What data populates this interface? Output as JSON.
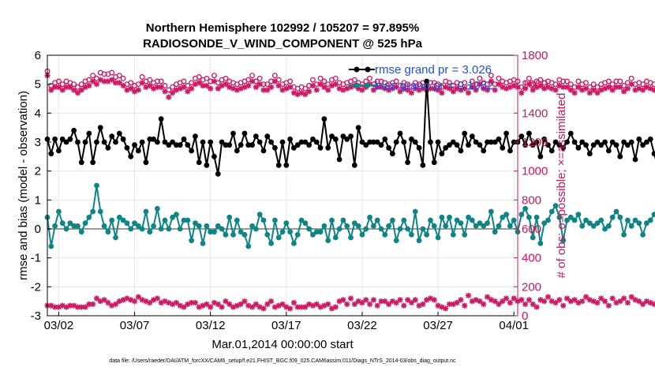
{
  "chart_data": {
    "type": "line",
    "title_line1": "Northern Hemisphere 102992 / 105207 = 97.895%",
    "title_line2": "RADIOSONDE_V_WIND_COMPONENT @ 525 hPa",
    "xlabel": "Mar.01,2014 00:00:00 start",
    "ylabel_left": "rmse and bias (model - observation)",
    "ylabel_right": "# of obs: o=possible; ×=assimilated",
    "footnote": "data file: /Users/raeder/DAI/ATM_forcXX/CAM6_setup/f.e21.FHIST_BGC.f09_025.CAM6assim.011/Diags_NTrS_2014-03/obs_diag_output.nc",
    "x_tick_labels": [
      "03/02",
      "03/07",
      "03/12",
      "03/17",
      "03/22",
      "03/27",
      "04/01"
    ],
    "x_tick_days": [
      1,
      6,
      11,
      16,
      21,
      26,
      31
    ],
    "xlim_days": [
      0.25,
      31.25
    ],
    "ylim_left": [
      -3,
      6
    ],
    "yticks_left": [
      "-3",
      "-2",
      "-1",
      "0",
      "1",
      "2",
      "3",
      "4",
      "5",
      "6"
    ],
    "ylim_right": [
      0,
      1800
    ],
    "yticks_right": [
      "0",
      "200",
      "400",
      "600",
      "800",
      "1000",
      "1200",
      "1400",
      "1600",
      "1800"
    ],
    "colors": {
      "rmse": "#000000",
      "bias": "#0e8585",
      "obs": "#cf1863",
      "zero_line": "#9a9a9a",
      "legend_text": "#1f4fe0",
      "right_axis": "#c8175d"
    },
    "legend": [
      {
        "series": "rmse",
        "label": "rmse grand pr = 3.026"
      },
      {
        "series": "bias",
        "label": "bias grand pr = 0.1082"
      }
    ],
    "x_step_days": 0.25,
    "series": [
      {
        "name": "rmse",
        "axis": "left",
        "values": [
          3.1,
          2.6,
          3.1,
          2.7,
          3.1,
          3.0,
          3.1,
          3.4,
          3.0,
          2.3,
          3.0,
          3.3,
          2.3,
          3.0,
          3.5,
          3.0,
          2.8,
          3.2,
          3.0,
          3.3,
          3.1,
          2.8,
          2.5,
          2.9,
          2.7,
          3.0,
          2.3,
          3.1,
          3.1,
          3.0,
          3.8,
          3.0,
          2.9,
          3.0,
          2.9,
          2.9,
          3.1,
          2.9,
          2.7,
          3.2,
          2.3,
          3.0,
          2.2,
          3.0,
          2.5,
          1.9,
          3.0,
          2.9,
          2.9,
          3.3,
          2.7,
          2.9,
          3.3,
          2.9,
          2.9,
          3.2,
          3.0,
          2.7,
          3.2,
          3.0,
          2.8,
          2.2,
          3.0,
          2.2,
          3.1,
          2.8,
          2.9,
          3.0,
          3.0,
          2.9,
          3.1,
          3.0,
          2.8,
          3.8,
          2.8,
          3.2,
          3.1,
          2.4,
          3.2,
          3.1,
          3.2,
          2.2,
          3.5,
          3.0,
          2.9,
          3.0,
          3.0,
          3.0,
          2.9,
          3.1,
          2.8,
          2.6,
          3.0,
          3.3,
          3.0,
          2.3,
          3.1,
          3.0,
          2.8,
          2.2,
          5.1,
          3.0,
          2.3,
          3.0,
          2.6,
          2.8,
          2.9,
          3.0,
          2.9,
          2.7,
          3.3,
          2.9,
          3.2,
          3.0,
          2.9,
          2.7,
          3.0,
          3.0,
          3.0,
          3.1,
          2.8,
          3.3,
          2.7,
          3.0,
          3.0,
          3.2,
          2.9,
          3.3,
          2.9,
          3.0,
          2.5,
          3.1,
          2.9,
          2.7,
          3.0,
          2.9,
          2.8,
          3.0,
          3.3,
          3.0,
          2.8,
          3.0,
          2.9,
          2.6,
          2.9,
          3.0,
          2.9,
          3.0,
          2.7,
          3.0,
          2.9,
          2.5,
          3.0,
          2.9,
          3.0,
          2.4,
          3.1,
          2.9,
          3.0,
          3.1,
          2.6,
          2.1,
          2.9,
          2.5
        ]
      },
      {
        "name": "bias",
        "axis": "left",
        "values": [
          0.4,
          -0.6,
          0.1,
          0.6,
          0.2,
          0.0,
          0.2,
          0.1,
          0.1,
          -0.1,
          0.2,
          0.4,
          0.6,
          1.5,
          0.6,
          0.1,
          -0.1,
          0.3,
          -0.3,
          0.4,
          0.3,
          0.2,
          0.0,
          0.2,
          0.1,
          0.0,
          0.6,
          -0.1,
          0.1,
          0.7,
          0.0,
          0.3,
          0.0,
          0.4,
          0.5,
          0.0,
          0.3,
          0.3,
          -0.4,
          0.2,
          0.1,
          -0.5,
          0.1,
          -0.1,
          -0.1,
          0.1,
          0.0,
          -0.2,
          0.4,
          -0.2,
          0.3,
          -0.1,
          -0.2,
          -0.6,
          0.1,
          0.0,
          0.5,
          0.3,
          -0.2,
          -0.5,
          0.3,
          -0.3,
          -0.1,
          0.2,
          -0.1,
          -0.5,
          -0.2,
          0.3,
          0.2,
          0.0,
          -0.2,
          -0.1,
          -0.1,
          0.1,
          -0.4,
          0.3,
          -0.3,
          0.0,
          0.3,
          0.1,
          -0.3,
          0.2,
          0.1,
          -0.2,
          0.0,
          0.4,
          0.1,
          0.3,
          0.0,
          -0.2,
          0.1,
          0.3,
          -0.4,
          0.0,
          0.3,
          0.0,
          -0.2,
          0.6,
          -0.4,
          0.0,
          -0.2,
          0.3,
          0.1,
          -0.3,
          0.4,
          0.1,
          0.4,
          -0.2,
          0.3,
          0.2,
          -0.2,
          0.4,
          0.3,
          0.1,
          0.2,
          0.1,
          0.2,
          0.6,
          -0.1,
          0.1,
          0.4,
          0.5,
          0.1,
          0.3,
          -0.1,
          0.5,
          0.7,
          0.4,
          -0.3,
          0.4,
          -0.5,
          0.2,
          0.3,
          0.6,
          0.8,
          0.4,
          -0.4,
          0.3,
          0.4,
          0.3,
          0.5,
          0.1,
          0.3,
          0.2,
          0.1,
          0.2,
          0.3,
          0.0,
          0.1,
          0.4,
          0.6,
          0.4,
          -0.2,
          0.3,
          0.1,
          0.3,
          0.2,
          -0.2,
          0.2,
          0.3,
          0.5,
          0.3,
          0.1,
          0.2,
          -0.1,
          0.3
        ]
      },
      {
        "name": "obs_possible",
        "axis": "right",
        "marker": "o",
        "values": [
          1690,
          1590,
          1610,
          1620,
          1600,
          1620,
          1610,
          1600,
          1580,
          1600,
          1620,
          1630,
          1660,
          1640,
          1680,
          1670,
          1670,
          1680,
          1650,
          1660,
          1640,
          1600,
          1610,
          1590,
          1600,
          1650,
          1620,
          1630,
          1610,
          1620,
          1620,
          1590,
          1560,
          1580,
          1600,
          1610,
          1620,
          1590,
          1610,
          1640,
          1650,
          1630,
          1640,
          1620,
          1660,
          1610,
          1630,
          1640,
          1620,
          1610,
          1600,
          1610,
          1620,
          1630,
          1660,
          1620,
          1640,
          1600,
          1600,
          1620,
          1660,
          1630,
          1600,
          1610,
          1620,
          1580,
          1570,
          1580,
          1570,
          1590,
          1630,
          1600,
          1640,
          1620,
          1600,
          1630,
          1640,
          1610,
          1600,
          1610,
          1620,
          1630,
          1610,
          1600,
          1620,
          1640,
          1600,
          1620,
          1620,
          1610,
          1600,
          1610,
          1620,
          1590,
          1610,
          1600,
          1580,
          1610,
          1600,
          1610,
          1600,
          1610,
          1610,
          1600,
          1580,
          1620,
          1610,
          1590,
          1610,
          1600,
          1610,
          1580,
          1620,
          1600,
          1640,
          1610,
          1600,
          1660,
          1600,
          1640,
          1620,
          1610,
          1620,
          1630,
          1620,
          1580,
          1610,
          1640,
          1600,
          1620,
          1630,
          1610,
          1620,
          1610,
          1600,
          1630,
          1620,
          1620,
          1600,
          1580,
          1620,
          1600,
          1610,
          1580,
          1600,
          1580,
          1600,
          1610,
          1620,
          1600,
          1620,
          1620,
          1590,
          1610,
          1640,
          1600,
          1610,
          1600,
          1620,
          1610,
          1600,
          1600,
          1680,
          1660
        ]
      },
      {
        "name": "obs_assimilated",
        "axis": "right",
        "marker": "x",
        "values": [
          1660,
          1560,
          1580,
          1580,
          1560,
          1580,
          1580,
          1560,
          1540,
          1560,
          1580,
          1590,
          1620,
          1600,
          1630,
          1620,
          1620,
          1630,
          1610,
          1610,
          1590,
          1560,
          1570,
          1550,
          1560,
          1610,
          1580,
          1590,
          1570,
          1580,
          1580,
          1550,
          1510,
          1540,
          1560,
          1570,
          1580,
          1550,
          1570,
          1600,
          1610,
          1590,
          1590,
          1570,
          1620,
          1570,
          1590,
          1600,
          1580,
          1570,
          1560,
          1570,
          1580,
          1590,
          1620,
          1580,
          1600,
          1560,
          1560,
          1580,
          1620,
          1590,
          1560,
          1570,
          1580,
          1540,
          1530,
          1540,
          1530,
          1550,
          1590,
          1560,
          1600,
          1580,
          1560,
          1590,
          1600,
          1570,
          1560,
          1570,
          1580,
          1590,
          1570,
          1560,
          1580,
          1600,
          1560,
          1580,
          1580,
          1570,
          1560,
          1570,
          1580,
          1550,
          1570,
          1560,
          1540,
          1570,
          1560,
          1570,
          1560,
          1570,
          1570,
          1560,
          1540,
          1580,
          1570,
          1550,
          1570,
          1560,
          1570,
          1540,
          1580,
          1560,
          1600,
          1570,
          1560,
          1620,
          1560,
          1600,
          1580,
          1570,
          1580,
          1590,
          1580,
          1540,
          1570,
          1600,
          1560,
          1580,
          1590,
          1570,
          1580,
          1570,
          1560,
          1590,
          1580,
          1580,
          1560,
          1540,
          1580,
          1560,
          1570,
          1540,
          1560,
          1540,
          1560,
          1570,
          1580,
          1560,
          1580,
          1580,
          1550,
          1570,
          1600,
          1560,
          1570,
          1560,
          1580,
          1570,
          1560,
          1560,
          1650,
          1620
        ]
      },
      {
        "name": "obs_small",
        "axis": "right",
        "marker": "x",
        "values": [
          70,
          70,
          60,
          60,
          70,
          60,
          70,
          70,
          60,
          60,
          60,
          80,
          80,
          120,
          100,
          110,
          90,
          70,
          80,
          100,
          110,
          120,
          110,
          100,
          130,
          110,
          100,
          90,
          110,
          120,
          90,
          100,
          90,
          80,
          90,
          70,
          60,
          80,
          90,
          90,
          60,
          70,
          80,
          60,
          90,
          80,
          60,
          100,
          80,
          60,
          70,
          80,
          100,
          70,
          60,
          80,
          60,
          50,
          80,
          100,
          60,
          70,
          80,
          60,
          50,
          90,
          60,
          60,
          60,
          80,
          70,
          80,
          60,
          70,
          80,
          50,
          60,
          100,
          110,
          80,
          120,
          80,
          100,
          90,
          110,
          80,
          110,
          70,
          100,
          100,
          80,
          100,
          90,
          110,
          70,
          110,
          90,
          110,
          70,
          80,
          110,
          120,
          110,
          70,
          60,
          50,
          80,
          80,
          90,
          110,
          70,
          140,
          100,
          110,
          100,
          80,
          130,
          110,
          100,
          80,
          100,
          120,
          90,
          120,
          100,
          110,
          80,
          110,
          80,
          60,
          110,
          100,
          130,
          100,
          90,
          110,
          70,
          120,
          100,
          110,
          90,
          100,
          130,
          110,
          100,
          90,
          120,
          100,
          70,
          120,
          90,
          100,
          120,
          90,
          130,
          110,
          100,
          80,
          100,
          90,
          80,
          110,
          100,
          80,
          100
        ]
      }
    ]
  }
}
